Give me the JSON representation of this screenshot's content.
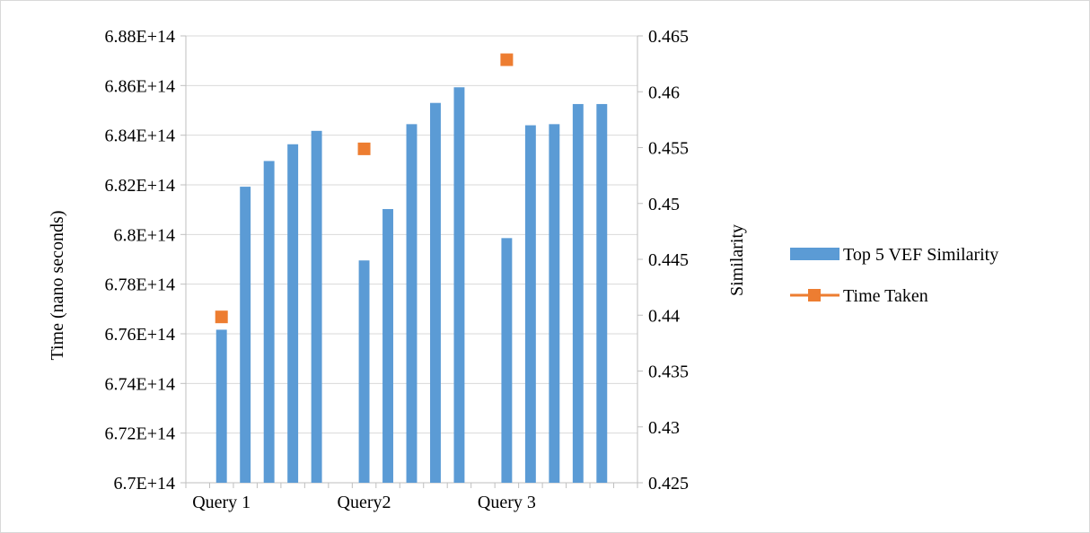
{
  "chart_data": {
    "type": "bar",
    "ylabel": "Time (nano seconds)",
    "y2label": "Similarity",
    "categories": [
      "Query 1",
      "Query2",
      "Query 3"
    ],
    "bars_per_category": 5,
    "gap_slots": 1,
    "y_left": {
      "min": 670000000000000.0,
      "max": 688000000000000.0,
      "ticks": [
        "6.7E+14",
        "6.72E+14",
        "6.74E+14",
        "6.76E+14",
        "6.78E+14",
        "6.8E+14",
        "6.82E+14",
        "6.84E+14",
        "6.86E+14",
        "6.88E+14"
      ]
    },
    "y_right": {
      "min": 0.425,
      "max": 0.465,
      "ticks": [
        "0.425",
        "0.43",
        "0.435",
        "0.44",
        "0.445",
        "0.45",
        "0.455",
        "0.46",
        "0.465"
      ]
    },
    "series": [
      {
        "name": "Top 5  VEF  Similarity",
        "axis": "right",
        "kind": "bar",
        "color": "#5B9BD5",
        "values": [
          [
            0.4387,
            0.4515,
            0.4538,
            0.4553,
            0.4565
          ],
          [
            0.4449,
            0.4495,
            0.4571,
            0.459,
            0.4604
          ],
          [
            0.4469,
            0.457,
            0.4571,
            0.4589,
            0.4589
          ]
        ]
      },
      {
        "name": "Time Taken",
        "axis": "left",
        "kind": "marker",
        "color": "#ED7D31",
        "values": [
          676680000000000.0,
          683450000000000.0,
          687040000000000.0
        ]
      }
    ],
    "legend": {
      "position": "right"
    },
    "grid": {
      "horizontal": true,
      "vertical": false
    }
  }
}
